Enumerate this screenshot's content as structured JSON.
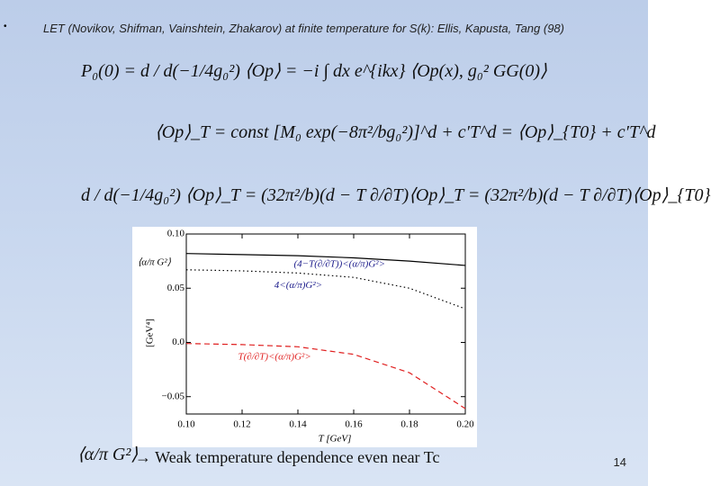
{
  "bullet": "LET  (Novikov, Shifman, Vainshtein, Zhakarov)  at finite temperature for S(k): Ellis, Kapusta, Tang (98)",
  "equations": [
    "P₀(0) = d / d(−1/4g₀²) ⟨Op⟩ = −i ∫ dx e^{ikx} ⟨Op(x), g₀² GG(0)⟩",
    "⟨Op⟩_T = const [M₀ exp(−8π²/bg₀²)]^d + c′T^d = ⟨Op⟩_{T0} + c′T^d",
    "d / d(−1/4g₀²) ⟨Op⟩_T = (32π²/b)(d − T ∂/∂T)⟨Op⟩_T = (32π²/b)(d − T ∂/∂T)⟨Op⟩_{T0}"
  ],
  "g2_symbol": "⟨α/π G²⟩",
  "conclusion": "→   Weak temperature dependence even near Tc",
  "page_number": "14",
  "chart_data": {
    "type": "line",
    "inset_label": "⟨α/π G²⟩",
    "x_label": "T [GeV]",
    "y_label": "[GeV⁴]",
    "x": [
      0.1,
      0.12,
      0.14,
      0.16,
      0.18,
      0.2
    ],
    "series": [
      {
        "name": "(4−T(∂/∂T))<(α/π)G²>",
        "color": "#000000",
        "dash": "solid",
        "values": [
          0.082,
          0.081,
          0.08,
          0.078,
          0.075,
          0.071
        ]
      },
      {
        "name": "4<(α/π)G²>",
        "color": "#000000",
        "dash": "dotted",
        "values": [
          0.067,
          0.066,
          0.064,
          0.06,
          0.05,
          0.031
        ]
      },
      {
        "name": "T(∂/∂T)<(α/π)G²>",
        "color": "#e02020",
        "dash": "dashed",
        "values": [
          -0.001,
          -0.002,
          -0.004,
          -0.011,
          -0.028,
          -0.061
        ]
      }
    ],
    "xlim": [
      0.1,
      0.2
    ],
    "xticks": [
      {
        "value": 0.1,
        "label": "0.10"
      },
      0.12,
      0.14,
      0.16,
      0.18,
      {
        "value": 0.2,
        "label": "0.20"
      }
    ],
    "ylim": [
      -0.066,
      0.1
    ],
    "yticks": [
      {
        "value": -0.05,
        "label": "−0.05"
      },
      {
        "value": 0.0,
        "label": "0.0"
      },
      0.05,
      {
        "value": 0.1,
        "label": "0.10"
      }
    ]
  }
}
